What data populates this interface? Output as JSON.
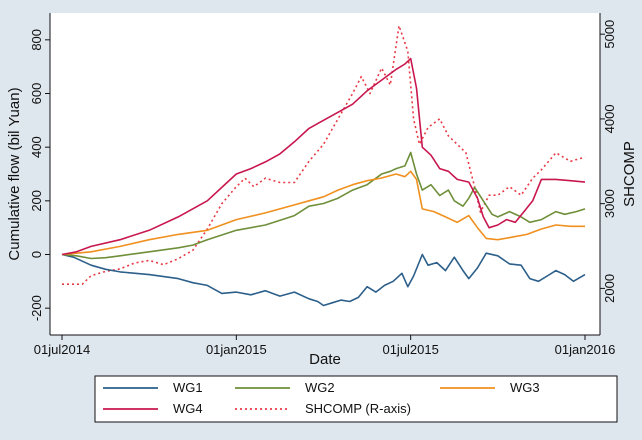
{
  "chart_data": {
    "type": "line",
    "xlabel": "Date",
    "ylabel_left": "Cumulative flow (bil Yuan)",
    "ylabel_right": "SHCOMP",
    "x_ticks": [
      "01jul2014",
      "01jan2015",
      "01jul2015",
      "01jan2016"
    ],
    "x_range_months": [
      0,
      18
    ],
    "y_left_ticks": [
      "800",
      "600",
      "400",
      "200",
      "0",
      "-200"
    ],
    "y_left_range": [
      -300,
      900
    ],
    "y_right_ticks": [
      "5000",
      "4000",
      "3000",
      "2000"
    ],
    "y_right_range": [
      1450,
      5250
    ],
    "grid": false,
    "legend_position": "bottom",
    "series": [
      {
        "name": "WG1",
        "axis": "left",
        "color": "#2c5f8a",
        "dash": "solid",
        "points": [
          [
            0,
            0
          ],
          [
            0.4,
            -10
          ],
          [
            1,
            -40
          ],
          [
            1.5,
            -55
          ],
          [
            2,
            -65
          ],
          [
            3,
            -75
          ],
          [
            4,
            -90
          ],
          [
            4.5,
            -105
          ],
          [
            5,
            -115
          ],
          [
            5.5,
            -145
          ],
          [
            6,
            -140
          ],
          [
            6.5,
            -150
          ],
          [
            7,
            -135
          ],
          [
            7.5,
            -155
          ],
          [
            8,
            -140
          ],
          [
            8.5,
            -165
          ],
          [
            8.8,
            -175
          ],
          [
            9,
            -190
          ],
          [
            9.3,
            -180
          ],
          [
            9.6,
            -170
          ],
          [
            9.9,
            -175
          ],
          [
            10.2,
            -160
          ],
          [
            10.5,
            -120
          ],
          [
            10.8,
            -140
          ],
          [
            11.1,
            -115
          ],
          [
            11.4,
            -100
          ],
          [
            11.7,
            -70
          ],
          [
            11.9,
            -120
          ],
          [
            12.1,
            -80
          ],
          [
            12.4,
            0
          ],
          [
            12.6,
            -40
          ],
          [
            12.9,
            -30
          ],
          [
            13.2,
            -60
          ],
          [
            13.5,
            -10
          ],
          [
            13.8,
            -60
          ],
          [
            14,
            -90
          ],
          [
            14.3,
            -50
          ],
          [
            14.6,
            5
          ],
          [
            15,
            -5
          ],
          [
            15.4,
            -35
          ],
          [
            15.8,
            -40
          ],
          [
            16.1,
            -90
          ],
          [
            16.4,
            -100
          ],
          [
            16.7,
            -80
          ],
          [
            17,
            -60
          ],
          [
            17.3,
            -75
          ],
          [
            17.6,
            -100
          ],
          [
            18,
            -75
          ]
        ]
      },
      {
        "name": "WG2",
        "axis": "left",
        "color": "#6f8f3a",
        "dash": "solid",
        "points": [
          [
            0,
            0
          ],
          [
            0.5,
            -5
          ],
          [
            1,
            -15
          ],
          [
            1.5,
            -12
          ],
          [
            2,
            -5
          ],
          [
            3,
            10
          ],
          [
            4,
            25
          ],
          [
            4.5,
            35
          ],
          [
            5,
            55
          ],
          [
            6,
            90
          ],
          [
            7,
            110
          ],
          [
            8,
            145
          ],
          [
            8.5,
            180
          ],
          [
            9,
            190
          ],
          [
            9.5,
            210
          ],
          [
            10,
            240
          ],
          [
            10.5,
            260
          ],
          [
            11,
            300
          ],
          [
            11.3,
            310
          ],
          [
            11.5,
            320
          ],
          [
            11.8,
            330
          ],
          [
            12,
            380
          ],
          [
            12.2,
            300
          ],
          [
            12.4,
            240
          ],
          [
            12.7,
            260
          ],
          [
            13,
            220
          ],
          [
            13.3,
            240
          ],
          [
            13.5,
            200
          ],
          [
            13.8,
            180
          ],
          [
            14,
            210
          ],
          [
            14.2,
            250
          ],
          [
            14.5,
            200
          ],
          [
            14.8,
            150
          ],
          [
            15,
            140
          ],
          [
            15.4,
            160
          ],
          [
            15.8,
            140
          ],
          [
            16.1,
            120
          ],
          [
            16.5,
            130
          ],
          [
            17,
            160
          ],
          [
            17.3,
            150
          ],
          [
            17.7,
            160
          ],
          [
            18,
            170
          ]
        ]
      },
      {
        "name": "WG3",
        "axis": "left",
        "color": "#f0901e",
        "dash": "solid",
        "points": [
          [
            0,
            0
          ],
          [
            0.5,
            5
          ],
          [
            1,
            10
          ],
          [
            2,
            30
          ],
          [
            3,
            55
          ],
          [
            4,
            75
          ],
          [
            5,
            90
          ],
          [
            6,
            130
          ],
          [
            7,
            155
          ],
          [
            8,
            185
          ],
          [
            8.5,
            200
          ],
          [
            9,
            215
          ],
          [
            9.5,
            240
          ],
          [
            10,
            260
          ],
          [
            10.5,
            275
          ],
          [
            11,
            285
          ],
          [
            11.5,
            300
          ],
          [
            11.8,
            290
          ],
          [
            12,
            310
          ],
          [
            12.2,
            280
          ],
          [
            12.4,
            170
          ],
          [
            12.8,
            160
          ],
          [
            13.2,
            140
          ],
          [
            13.6,
            120
          ],
          [
            14,
            145
          ],
          [
            14.3,
            100
          ],
          [
            14.6,
            60
          ],
          [
            15,
            55
          ],
          [
            15.5,
            65
          ],
          [
            16,
            75
          ],
          [
            16.5,
            95
          ],
          [
            17,
            110
          ],
          [
            17.5,
            105
          ],
          [
            18,
            105
          ]
        ]
      },
      {
        "name": "WG4",
        "axis": "left",
        "color": "#c8174f",
        "dash": "solid",
        "points": [
          [
            0,
            0
          ],
          [
            0.5,
            10
          ],
          [
            1,
            30
          ],
          [
            2,
            55
          ],
          [
            3,
            90
          ],
          [
            4,
            140
          ],
          [
            5,
            200
          ],
          [
            5.5,
            250
          ],
          [
            6,
            300
          ],
          [
            6.5,
            320
          ],
          [
            7,
            345
          ],
          [
            7.5,
            375
          ],
          [
            8,
            420
          ],
          [
            8.5,
            470
          ],
          [
            9,
            500
          ],
          [
            9.5,
            530
          ],
          [
            10,
            560
          ],
          [
            10.5,
            610
          ],
          [
            11,
            650
          ],
          [
            11.5,
            690
          ],
          [
            11.8,
            710
          ],
          [
            12,
            730
          ],
          [
            12.2,
            620
          ],
          [
            12.4,
            400
          ],
          [
            12.7,
            370
          ],
          [
            13,
            320
          ],
          [
            13.3,
            310
          ],
          [
            13.6,
            280
          ],
          [
            14,
            270
          ],
          [
            14.3,
            210
          ],
          [
            14.5,
            140
          ],
          [
            14.7,
            100
          ],
          [
            15,
            110
          ],
          [
            15.3,
            130
          ],
          [
            15.6,
            120
          ],
          [
            15.9,
            160
          ],
          [
            16.2,
            200
          ],
          [
            16.5,
            280
          ],
          [
            17,
            280
          ],
          [
            17.5,
            275
          ],
          [
            18,
            270
          ]
        ]
      },
      {
        "name": "SHCOMP (R-axis)",
        "axis": "right",
        "color": "#e83a45",
        "dash": "dotted",
        "points": [
          [
            0,
            2050
          ],
          [
            0.7,
            2050
          ],
          [
            1,
            2150
          ],
          [
            1.5,
            2200
          ],
          [
            2,
            2230
          ],
          [
            2.5,
            2300
          ],
          [
            3,
            2330
          ],
          [
            3.5,
            2280
          ],
          [
            4,
            2350
          ],
          [
            4.5,
            2450
          ],
          [
            5,
            2700
          ],
          [
            5.5,
            3000
          ],
          [
            6,
            3200
          ],
          [
            6.3,
            3300
          ],
          [
            6.6,
            3200
          ],
          [
            7,
            3300
          ],
          [
            7.5,
            3250
          ],
          [
            8,
            3250
          ],
          [
            8.5,
            3500
          ],
          [
            9,
            3700
          ],
          [
            9.5,
            4000
          ],
          [
            10,
            4300
          ],
          [
            10.3,
            4500
          ],
          [
            10.6,
            4300
          ],
          [
            11,
            4600
          ],
          [
            11.3,
            4400
          ],
          [
            11.6,
            5100
          ],
          [
            11.9,
            4800
          ],
          [
            12.1,
            4000
          ],
          [
            12.3,
            3700
          ],
          [
            12.6,
            3900
          ],
          [
            13,
            4000
          ],
          [
            13.3,
            3800
          ],
          [
            13.6,
            3700
          ],
          [
            13.9,
            3600
          ],
          [
            14.2,
            3200
          ],
          [
            14.4,
            2900
          ],
          [
            14.7,
            3100
          ],
          [
            15,
            3100
          ],
          [
            15.4,
            3200
          ],
          [
            15.8,
            3100
          ],
          [
            16.2,
            3300
          ],
          [
            16.5,
            3400
          ],
          [
            17,
            3600
          ],
          [
            17.5,
            3500
          ],
          [
            18,
            3550
          ]
        ]
      }
    ]
  }
}
